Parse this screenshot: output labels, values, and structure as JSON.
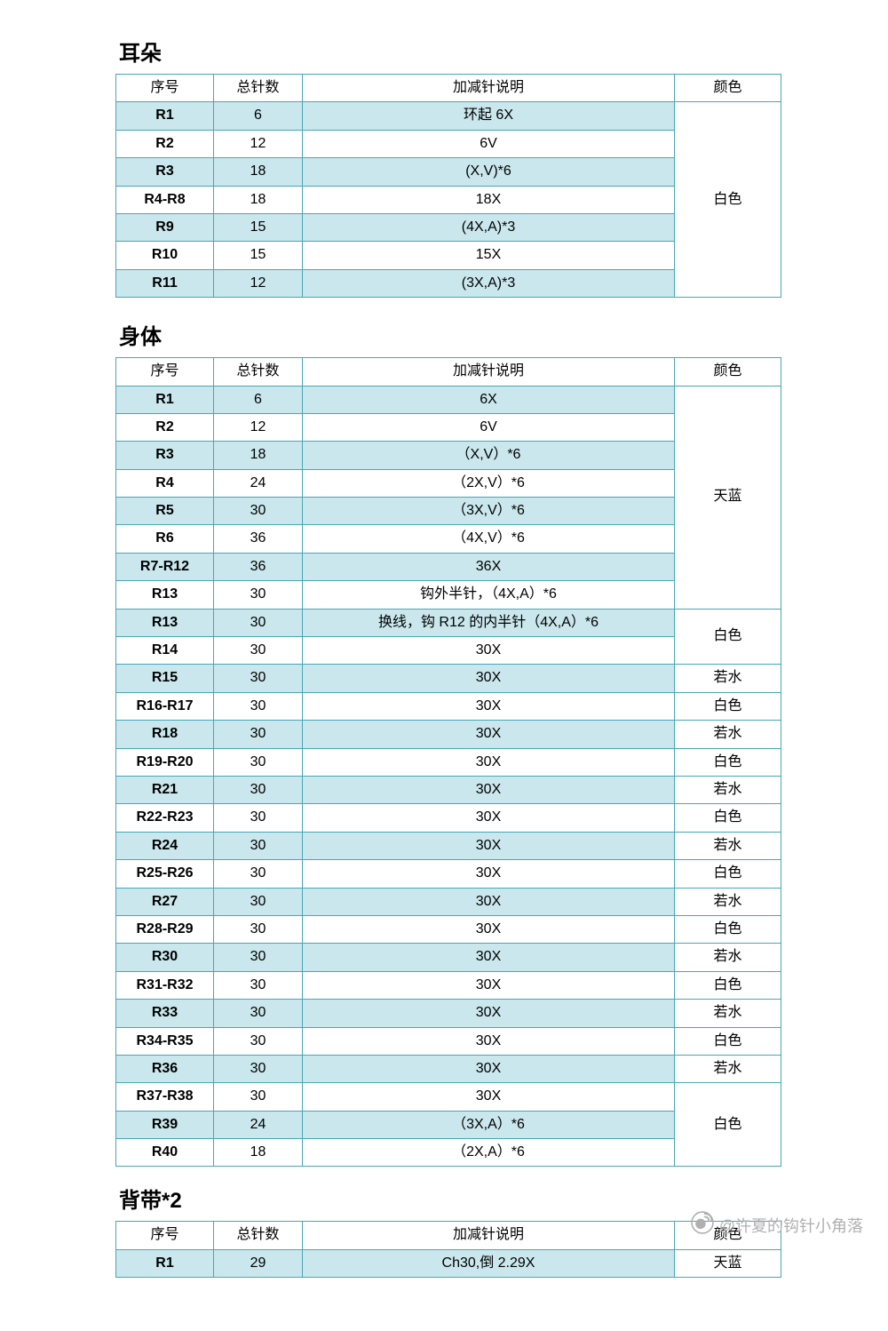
{
  "colors": {
    "border": "#4aa6b5",
    "shade": "#c9e7ec",
    "bg": "#ffffff",
    "footer": "#b0b0b0"
  },
  "headers": {
    "seq": "序号",
    "count": "总针数",
    "desc": "加减针说明",
    "color": "颜色"
  },
  "sections": [
    {
      "title": "耳朵",
      "rows": [
        {
          "seq": "R1",
          "cnt": "6",
          "desc": "环起 6X",
          "shade": true
        },
        {
          "seq": "R2",
          "cnt": "12",
          "desc": "6V",
          "shade": false
        },
        {
          "seq": "R3",
          "cnt": "18",
          "desc": "(X,V)*6",
          "shade": true
        },
        {
          "seq": "R4-R8",
          "cnt": "18",
          "desc": "18X",
          "shade": false
        },
        {
          "seq": "R9",
          "cnt": "15",
          "desc": "(4X,A)*3",
          "shade": true
        },
        {
          "seq": "R10",
          "cnt": "15",
          "desc": "15X",
          "shade": false
        },
        {
          "seq": "R11",
          "cnt": "12",
          "desc": "(3X,A)*3",
          "shade": true
        }
      ],
      "colorSpans": [
        {
          "start": 0,
          "span": 7,
          "label": "白色"
        }
      ]
    },
    {
      "title": "身体",
      "rows": [
        {
          "seq": "R1",
          "cnt": "6",
          "desc": "6X",
          "shade": true
        },
        {
          "seq": "R2",
          "cnt": "12",
          "desc": "6V",
          "shade": false
        },
        {
          "seq": "R3",
          "cnt": "18",
          "desc": "（X,V）*6",
          "shade": true
        },
        {
          "seq": "R4",
          "cnt": "24",
          "desc": "（2X,V）*6",
          "shade": false
        },
        {
          "seq": "R5",
          "cnt": "30",
          "desc": "（3X,V）*6",
          "shade": true
        },
        {
          "seq": "R6",
          "cnt": "36",
          "desc": "（4X,V）*6",
          "shade": false
        },
        {
          "seq": "R7-R12",
          "cnt": "36",
          "desc": "36X",
          "shade": true
        },
        {
          "seq": "R13",
          "cnt": "30",
          "desc": "钩外半针，（4X,A）*6",
          "shade": false
        },
        {
          "seq": "R13",
          "cnt": "30",
          "desc": "换线，钩 R12 的内半针（4X,A）*6",
          "shade": true
        },
        {
          "seq": "R14",
          "cnt": "30",
          "desc": "30X",
          "shade": false
        },
        {
          "seq": "R15",
          "cnt": "30",
          "desc": "30X",
          "shade": true
        },
        {
          "seq": "R16-R17",
          "cnt": "30",
          "desc": "30X",
          "shade": false
        },
        {
          "seq": "R18",
          "cnt": "30",
          "desc": "30X",
          "shade": true
        },
        {
          "seq": "R19-R20",
          "cnt": "30",
          "desc": "30X",
          "shade": false
        },
        {
          "seq": "R21",
          "cnt": "30",
          "desc": "30X",
          "shade": true
        },
        {
          "seq": "R22-R23",
          "cnt": "30",
          "desc": "30X",
          "shade": false
        },
        {
          "seq": "R24",
          "cnt": "30",
          "desc": "30X",
          "shade": true
        },
        {
          "seq": "R25-R26",
          "cnt": "30",
          "desc": "30X",
          "shade": false
        },
        {
          "seq": "R27",
          "cnt": "30",
          "desc": "30X",
          "shade": true
        },
        {
          "seq": "R28-R29",
          "cnt": "30",
          "desc": "30X",
          "shade": false
        },
        {
          "seq": "R30",
          "cnt": "30",
          "desc": "30X",
          "shade": true
        },
        {
          "seq": "R31-R32",
          "cnt": "30",
          "desc": "30X",
          "shade": false
        },
        {
          "seq": "R33",
          "cnt": "30",
          "desc": "30X",
          "shade": true
        },
        {
          "seq": "R34-R35",
          "cnt": "30",
          "desc": "30X",
          "shade": false
        },
        {
          "seq": "R36",
          "cnt": "30",
          "desc": "30X",
          "shade": true
        },
        {
          "seq": "R37-R38",
          "cnt": "30",
          "desc": "30X",
          "shade": false
        },
        {
          "seq": "R39",
          "cnt": "24",
          "desc": "（3X,A）*6",
          "shade": true
        },
        {
          "seq": "R40",
          "cnt": "18",
          "desc": "（2X,A）*6",
          "shade": false
        }
      ],
      "colorSpans": [
        {
          "start": 0,
          "span": 8,
          "label": "天蓝"
        },
        {
          "start": 8,
          "span": 2,
          "label": "白色"
        },
        {
          "start": 10,
          "span": 1,
          "label": "若水"
        },
        {
          "start": 11,
          "span": 1,
          "label": "白色"
        },
        {
          "start": 12,
          "span": 1,
          "label": "若水"
        },
        {
          "start": 13,
          "span": 1,
          "label": "白色"
        },
        {
          "start": 14,
          "span": 1,
          "label": "若水"
        },
        {
          "start": 15,
          "span": 1,
          "label": "白色"
        },
        {
          "start": 16,
          "span": 1,
          "label": "若水"
        },
        {
          "start": 17,
          "span": 1,
          "label": "白色"
        },
        {
          "start": 18,
          "span": 1,
          "label": "若水"
        },
        {
          "start": 19,
          "span": 1,
          "label": "白色"
        },
        {
          "start": 20,
          "span": 1,
          "label": "若水"
        },
        {
          "start": 21,
          "span": 1,
          "label": "白色"
        },
        {
          "start": 22,
          "span": 1,
          "label": "若水"
        },
        {
          "start": 23,
          "span": 1,
          "label": "白色"
        },
        {
          "start": 24,
          "span": 1,
          "label": "若水"
        },
        {
          "start": 25,
          "span": 3,
          "label": "白色"
        }
      ]
    },
    {
      "title": "背带*2",
      "rows": [
        {
          "seq": "R1",
          "cnt": "29",
          "desc": "Ch30,倒 2.29X",
          "shade": true
        }
      ],
      "colorSpans": [
        {
          "start": 0,
          "span": 1,
          "label": "天蓝"
        }
      ]
    }
  ],
  "footer": {
    "handle": "@许夏的钩针小角落",
    "icon": "weibo-icon"
  }
}
